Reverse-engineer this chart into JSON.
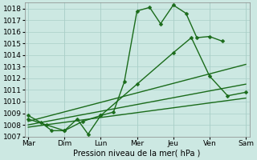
{
  "xlabel": "Pression niveau de la mer( hPa )",
  "x_labels": [
    "Mar",
    "Dim",
    "Lun",
    "Mer",
    "Jeu",
    "Ven",
    "Sam"
  ],
  "x_positions": [
    0,
    1,
    2,
    3,
    4,
    5,
    6
  ],
  "ylim": [
    1007,
    1018.5
  ],
  "yticks": [
    1007,
    1008,
    1009,
    1010,
    1011,
    1012,
    1013,
    1014,
    1015,
    1016,
    1017,
    1018
  ],
  "line_color": "#1a6b1a",
  "bg_color": "#cce8e2",
  "grid_color": "#aacfc8",
  "series": [
    {
      "x": [
        0,
        0.35,
        0.65,
        1.0,
        1.35,
        1.65,
        2.0,
        2.35,
        2.65,
        3.0,
        3.35,
        3.65,
        4.0,
        4.35,
        4.65,
        5.0,
        5.35,
        5.65,
        6.0
      ],
      "y": [
        1008.8,
        1008.2,
        1007.5,
        1007.5,
        1008.5,
        1007.2,
        1008.8,
        1009.1,
        1011.7,
        1017.8,
        1018.1,
        1016.7,
        1018.3,
        1017.6,
        1015.5,
        1015.6,
        1015.2,
        null,
        null
      ],
      "has_markers": true,
      "markersize": 2.5,
      "linewidth": 1.0,
      "linestyle": "-"
    },
    {
      "x": [
        0,
        0.5,
        1.0,
        1.5,
        2.0,
        3.0,
        4.0,
        4.5,
        5.0,
        5.5,
        6.0
      ],
      "y": [
        1008.5,
        1008.0,
        1007.5,
        1008.3,
        1008.8,
        1011.5,
        1014.2,
        1015.5,
        1012.2,
        1010.5,
        1010.8
      ],
      "has_markers": true,
      "markersize": 2.5,
      "linewidth": 1.0,
      "linestyle": "-"
    },
    {
      "x": [
        0,
        6
      ],
      "y": [
        1008.3,
        1013.2
      ],
      "has_markers": false,
      "markersize": 0,
      "linewidth": 1.0,
      "linestyle": "-"
    },
    {
      "x": [
        0,
        6
      ],
      "y": [
        1008.0,
        1011.5
      ],
      "has_markers": false,
      "markersize": 0,
      "linewidth": 1.0,
      "linestyle": "-"
    },
    {
      "x": [
        0,
        6
      ],
      "y": [
        1007.8,
        1010.3
      ],
      "has_markers": false,
      "markersize": 0,
      "linewidth": 1.0,
      "linestyle": "-"
    }
  ]
}
